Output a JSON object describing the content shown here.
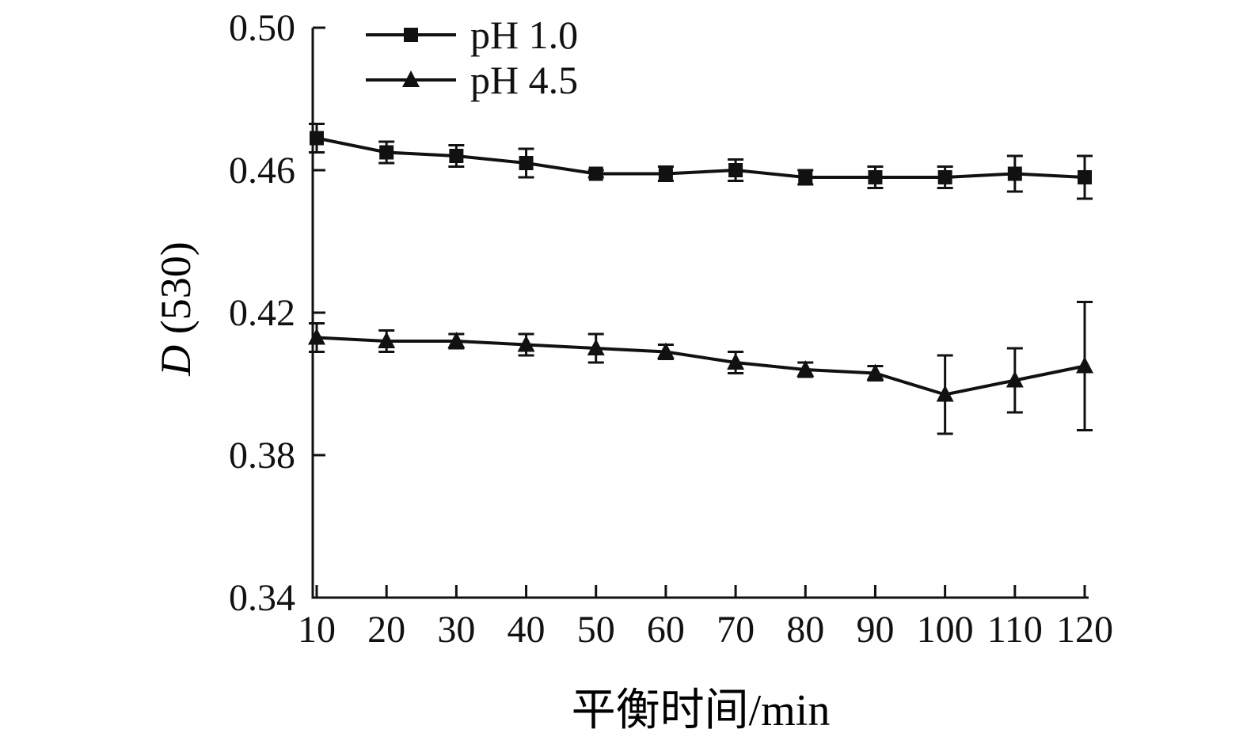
{
  "chart_data": {
    "type": "line",
    "x": [
      10,
      20,
      30,
      40,
      50,
      60,
      70,
      80,
      90,
      100,
      110,
      120
    ],
    "xlabel": "平衡时间/min",
    "ylabel_italic": "D",
    "ylabel_rest": " (530)",
    "ylim": [
      0.34,
      0.5
    ],
    "yticks": [
      0.34,
      0.38,
      0.42,
      0.46,
      0.5
    ],
    "ytick_labels": [
      "0.34",
      "0.38",
      "0.42",
      "0.46",
      "0.50"
    ],
    "grid": false,
    "legend_position": "top-left-inside",
    "color": "#111111",
    "series": [
      {
        "name": "pH 1.0",
        "marker": "square",
        "values": [
          0.469,
          0.465,
          0.464,
          0.462,
          0.459,
          0.459,
          0.46,
          0.458,
          0.458,
          0.458,
          0.459,
          0.458
        ],
        "errors": [
          0.004,
          0.003,
          0.003,
          0.004,
          0.001,
          0.002,
          0.003,
          0.002,
          0.003,
          0.003,
          0.005,
          0.006
        ]
      },
      {
        "name": "pH 4.5",
        "marker": "triangle",
        "values": [
          0.413,
          0.412,
          0.412,
          0.411,
          0.41,
          0.409,
          0.406,
          0.404,
          0.403,
          0.397,
          0.401,
          0.405
        ],
        "errors": [
          0.004,
          0.003,
          0.002,
          0.003,
          0.004,
          0.002,
          0.003,
          0.002,
          0.002,
          0.011,
          0.009,
          0.018
        ]
      }
    ]
  }
}
